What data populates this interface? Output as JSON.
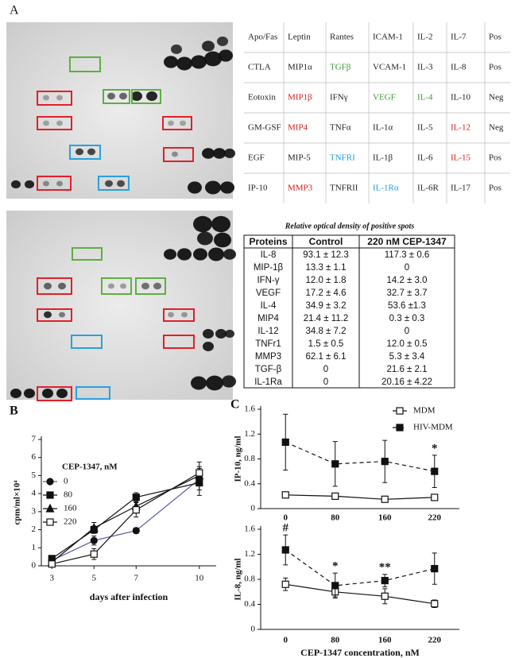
{
  "panel_label": "A",
  "array_map": {
    "rows": [
      [
        "Apo/Fas",
        "Leptin",
        "Rantes",
        "ICAM-1",
        "IL-2",
        "IL-7",
        "Pos"
      ],
      [
        "CTLA",
        "MIP1α",
        {
          "text": "TGFβ",
          "color": "#3a9a3a"
        },
        "VCAM-1",
        "IL-3",
        "IL-8",
        "Pos"
      ],
      [
        "Eotoxin",
        {
          "text": "MIP1β",
          "color": "#d42020"
        },
        "IFNγ",
        {
          "text": "VEGF",
          "color": "#3a9a3a"
        },
        {
          "text": "IL-4",
          "color": "#3a9a3a"
        },
        "IL-10",
        "Neg"
      ],
      [
        "GM-GSF",
        {
          "text": "MIP4",
          "color": "#d42020"
        },
        "TNFα",
        "IL-1α",
        "IL-5",
        {
          "text": "IL-12",
          "color": "#d42020"
        },
        "Neg"
      ],
      [
        "EGF",
        "MIP-5",
        {
          "text": "TNFRI",
          "color": "#1ea0d8"
        },
        "IL-1β",
        "IL-6",
        {
          "text": "IL-15",
          "color": "#d42020"
        },
        "Pos"
      ],
      [
        "IP-10",
        {
          "text": "MMP3",
          "color": "#d42020"
        },
        "TNFRII",
        {
          "text": "IL-1Rα",
          "color": "#1ea0d8"
        },
        "IL-6R",
        "IL-17",
        "Pos"
      ]
    ]
  },
  "density_table": {
    "title": "Relative optical density of positive spots",
    "header": [
      "Proteins",
      "Control",
      "220 nM CEP-1347"
    ],
    "rows": [
      [
        "IL-8",
        "93.1 ± 12.3",
        "117.3 ± 0.6"
      ],
      [
        "MIP-1β",
        "13.3 ± 1.1",
        "0"
      ],
      [
        "IFN-γ",
        "12.0 ± 1.8",
        "14.2 ± 3.0"
      ],
      [
        "VEGF",
        "17.2 ± 4.6",
        "32.7 ± 3.7"
      ],
      [
        "IL-4",
        "34.9 ± 3.2",
        "53.6 ±1.3"
      ],
      [
        "MIP4",
        "21.4 ± 11.2",
        "0.3 ± 0.3"
      ],
      [
        "IL-12",
        "34.8 ± 7.2",
        "0"
      ],
      [
        "TNFr1",
        "1.5 ± 0.5",
        "12.0 ± 0.5"
      ],
      [
        "MMP3",
        "62.1 ± 6.1",
        "5.3 ± 3.4"
      ],
      [
        "TGF-β",
        "0",
        "21.6 ± 2.1"
      ],
      [
        "IL-1Ra",
        "0",
        "20.16 ± 4.22"
      ]
    ]
  },
  "chart_data": [
    {
      "type": "line",
      "title": "B",
      "xlabel": "days after infection",
      "ylabel": "cpm/ml×10⁴",
      "x": [
        3,
        5,
        7,
        10
      ],
      "xlim": [
        2.5,
        10.8
      ],
      "xticks": [
        3,
        5,
        7,
        10
      ],
      "ylim": [
        0,
        7
      ],
      "yticks": [
        0,
        1,
        2,
        3,
        4,
        5,
        6,
        7
      ],
      "legend": "upper left",
      "legend_title": "CEP-1347, nM",
      "series": [
        {
          "name": "0",
          "marker": "circle",
          "fill": "#111",
          "color": "#5a5aa8",
          "values": [
            0.3,
            1.4,
            1.95,
            4.8
          ],
          "errors": [
            0.05,
            0.25,
            0.15,
            0.6
          ]
        },
        {
          "name": "80",
          "marker": "square",
          "fill": "#111",
          "color": "#111",
          "values": [
            0.4,
            2.0,
            3.8,
            4.6
          ],
          "errors": [
            0.05,
            0.2,
            0.25,
            0.7
          ]
        },
        {
          "name": "160",
          "marker": "triangle",
          "fill": "#111",
          "color": "#111",
          "values": [
            0.2,
            2.1,
            3.3,
            5.0
          ],
          "errors": [
            0.05,
            0.3,
            0.3,
            0.5
          ]
        },
        {
          "name": "220",
          "marker": "square",
          "fill": "#fff",
          "color": "#111",
          "values": [
            0.1,
            0.65,
            3.1,
            5.15
          ],
          "errors": [
            0.05,
            0.3,
            0.4,
            0.6
          ]
        }
      ]
    },
    {
      "type": "line",
      "title": "C",
      "ylabel": "IP-10, ng/ml",
      "categories": [
        "0",
        "80",
        "160",
        "220"
      ],
      "ylim": [
        0,
        1.6
      ],
      "yticks": [
        0,
        0.4,
        0.8,
        1.2,
        1.6
      ],
      "legend": "upper right",
      "annotations": [
        "*"
      ],
      "series": [
        {
          "name": "MDM",
          "marker": "square",
          "fill": "#fff",
          "color": "#111",
          "values": [
            0.22,
            0.2,
            0.15,
            0.18
          ]
        },
        {
          "name": "HIV-MDM",
          "marker": "square",
          "fill": "#111",
          "color": "#111",
          "dash": "5,4",
          "values": [
            1.07,
            0.72,
            0.76,
            0.6
          ],
          "errors": [
            0.45,
            0.36,
            0.34,
            0.26
          ]
        }
      ]
    },
    {
      "type": "line",
      "ylabel": "IL-8, ng/ml",
      "xlabel": "CEP-1347 concentration, nM",
      "categories": [
        "0",
        "80",
        "160",
        "220"
      ],
      "ylim": [
        0,
        1.6
      ],
      "yticks": [
        0,
        0.4,
        0.8,
        1.2,
        1.6
      ],
      "annotations": [
        "#",
        "*",
        "**"
      ],
      "series": [
        {
          "marker": "square",
          "fill": "#fff",
          "color": "#111",
          "values": [
            0.72,
            0.6,
            0.53,
            0.41
          ],
          "errors": [
            0.1,
            0.08,
            0.12,
            0.06
          ]
        },
        {
          "marker": "square",
          "fill": "#111",
          "color": "#111",
          "dash": "5,4",
          "values": [
            1.27,
            0.7,
            0.78,
            0.97
          ],
          "errors": [
            0.24,
            0.2,
            0.1,
            0.25
          ]
        }
      ]
    }
  ]
}
